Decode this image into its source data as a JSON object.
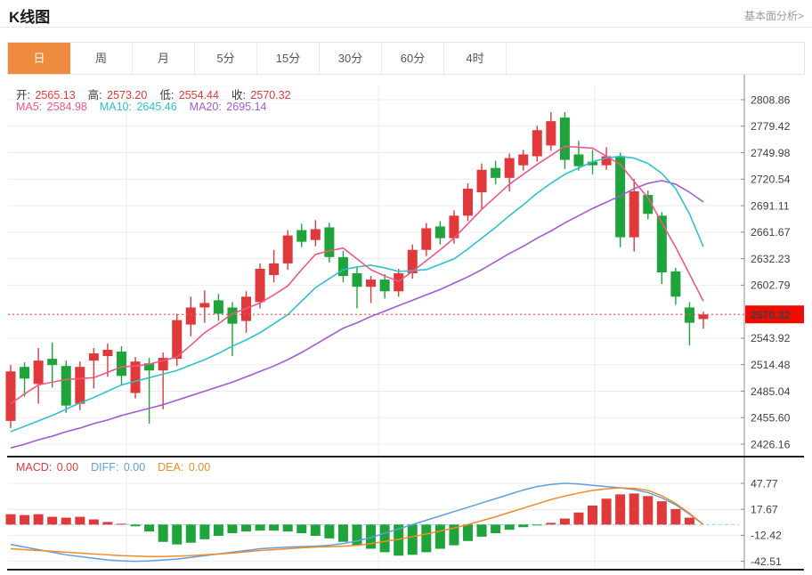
{
  "header": {
    "title": "K线图",
    "link": "基本面分析>"
  },
  "tabs": {
    "items": [
      "日",
      "周",
      "月",
      "5分",
      "15分",
      "30分",
      "60分",
      "4时"
    ],
    "active_index": 0,
    "active_bg": "#ee8b3e"
  },
  "info": {
    "ohlc": [
      {
        "label": "开:",
        "value": "2565.13"
      },
      {
        "label": "高:",
        "value": "2573.20"
      },
      {
        "label": "低:",
        "value": "2554.44"
      },
      {
        "label": "收:",
        "value": "2570.32"
      }
    ],
    "ohlc_label_color": "#3a3a3a",
    "ohlc_value_color": "#e0393b",
    "ma": [
      {
        "label": "MA5:",
        "value": "2584.98",
        "color": "#f05787"
      },
      {
        "label": "MA10:",
        "value": "2645.46",
        "color": "#2ec1ce"
      },
      {
        "label": "MA20:",
        "value": "2695.14",
        "color": "#a55ad2"
      }
    ]
  },
  "macd_info": [
    {
      "label": "MACD:",
      "value": "0.00",
      "color": "#e0393b"
    },
    {
      "label": "DIFF:",
      "value": "0.00",
      "color": "#5e9fe0"
    },
    {
      "label": "DEA:",
      "value": "0.00",
      "color": "#f08c23"
    }
  ],
  "chart_data": {
    "type": "candlestick+macd",
    "price_axis_ticks": [
      "2808.86",
      "2779.42",
      "2749.98",
      "2720.54",
      "2691.11",
      "2661.67",
      "2632.23",
      "2602.79",
      "2543.92",
      "2514.48",
      "2485.04",
      "2455.60",
      "2426.16"
    ],
    "last_price": 2570.32,
    "last_price_label": "2570.32",
    "candles": [
      [
        2452,
        2514,
        2444,
        2507
      ],
      [
        2512,
        2517,
        2479,
        2499
      ],
      [
        2493,
        2533,
        2471,
        2519
      ],
      [
        2521,
        2539,
        2489,
        2514
      ],
      [
        2513,
        2519,
        2461,
        2469
      ],
      [
        2471,
        2518,
        2464,
        2512
      ],
      [
        2519,
        2533,
        2488,
        2527
      ],
      [
        2524,
        2538,
        2501,
        2531
      ],
      [
        2529,
        2535,
        2491,
        2502
      ],
      [
        2483,
        2523,
        2477,
        2518
      ],
      [
        2516,
        2522,
        2449,
        2508
      ],
      [
        2508,
        2528,
        2465,
        2522
      ],
      [
        2521,
        2571,
        2513,
        2564
      ],
      [
        2559,
        2590,
        2546,
        2578
      ],
      [
        2578,
        2597,
        2561,
        2583
      ],
      [
        2586,
        2593,
        2563,
        2571
      ],
      [
        2578,
        2584,
        2524,
        2560
      ],
      [
        2563,
        2596,
        2550,
        2590
      ],
      [
        2584,
        2627,
        2577,
        2621
      ],
      [
        2614,
        2642,
        2606,
        2627
      ],
      [
        2627,
        2664,
        2620,
        2658
      ],
      [
        2664,
        2671,
        2645,
        2651
      ],
      [
        2653,
        2675,
        2646,
        2665
      ],
      [
        2667,
        2672,
        2628,
        2634
      ],
      [
        2634,
        2641,
        2606,
        2613
      ],
      [
        2616,
        2623,
        2577,
        2601
      ],
      [
        2601,
        2613,
        2583,
        2609
      ],
      [
        2609,
        2615,
        2588,
        2596
      ],
      [
        2596,
        2621,
        2590,
        2616
      ],
      [
        2616,
        2648,
        2610,
        2642
      ],
      [
        2642,
        2672,
        2635,
        2666
      ],
      [
        2668,
        2674,
        2648,
        2655
      ],
      [
        2655,
        2686,
        2649,
        2680
      ],
      [
        2680,
        2716,
        2674,
        2710
      ],
      [
        2706,
        2738,
        2687,
        2731
      ],
      [
        2733,
        2741,
        2715,
        2722
      ],
      [
        2722,
        2749,
        2707,
        2744
      ],
      [
        2736,
        2753,
        2730,
        2748
      ],
      [
        2746,
        2780,
        2740,
        2775
      ],
      [
        2758,
        2795,
        2752,
        2785
      ],
      [
        2789,
        2795,
        2732,
        2742
      ],
      [
        2748,
        2763,
        2730,
        2735
      ],
      [
        2740,
        2753,
        2726,
        2736
      ],
      [
        2736,
        2756,
        2731,
        2746
      ],
      [
        2745,
        2750,
        2645,
        2656
      ],
      [
        2656,
        2721,
        2640,
        2707
      ],
      [
        2703,
        2708,
        2676,
        2682
      ],
      [
        2680,
        2684,
        2604,
        2617
      ],
      [
        2618,
        2622,
        2581,
        2590
      ],
      [
        2578,
        2584,
        2536,
        2561
      ],
      [
        2565.13,
        2573.2,
        2554.44,
        2570.32
      ]
    ],
    "ma5": [
      2471,
      2482,
      2492,
      2495,
      2498,
      2499,
      2500,
      2506,
      2512,
      2513,
      2515,
      2519,
      2523,
      2536,
      2550,
      2560,
      2571,
      2577,
      2583,
      2592,
      2602,
      2620,
      2637,
      2641,
      2644,
      2632,
      2620,
      2613,
      2607,
      2618,
      2630,
      2642,
      2655,
      2671,
      2687,
      2701,
      2715,
      2726,
      2737,
      2747,
      2757,
      2756,
      2755,
      2746,
      2737,
      2718,
      2700,
      2672,
      2645,
      2615,
      2584.98
    ],
    "ma10": [
      2440,
      2446,
      2452,
      2458,
      2465,
      2472,
      2478,
      2485,
      2492,
      2496,
      2500,
      2504,
      2508,
      2514,
      2520,
      2527,
      2535,
      2542,
      2550,
      2560,
      2570,
      2585,
      2600,
      2610,
      2620,
      2623,
      2625,
      2622,
      2618,
      2619,
      2620,
      2626,
      2632,
      2643,
      2655,
      2667,
      2680,
      2692,
      2705,
      2716,
      2726,
      2733,
      2740,
      2744,
      2746,
      2744,
      2738,
      2727,
      2710,
      2682,
      2645.46
    ],
    "ma20": [
      2422,
      2426,
      2431,
      2435,
      2440,
      2444,
      2449,
      2453,
      2458,
      2462,
      2466,
      2470,
      2475,
      2480,
      2485,
      2490,
      2495,
      2501,
      2507,
      2513,
      2520,
      2528,
      2537,
      2546,
      2555,
      2561,
      2568,
      2574,
      2580,
      2586,
      2592,
      2598,
      2605,
      2612,
      2620,
      2629,
      2638,
      2646,
      2655,
      2663,
      2672,
      2680,
      2688,
      2695,
      2702,
      2710,
      2716,
      2719,
      2715,
      2706,
      2695.14
    ],
    "macd_axis_ticks": [
      "47.77",
      "17.67",
      "-12.42",
      "-42.51"
    ],
    "macd_hist": [
      12,
      11,
      12,
      9,
      8,
      9,
      6,
      3,
      1,
      -2,
      -8,
      -20,
      -23,
      -21,
      -17,
      -13,
      -10,
      -8,
      -7,
      -7,
      -8,
      -10,
      -13,
      -16,
      -20,
      -24,
      -28,
      -32,
      -36,
      -35,
      -32,
      -28,
      -24,
      -19,
      -14,
      -10,
      -6,
      -3,
      -1,
      2,
      7,
      14,
      22,
      30,
      35,
      36,
      33,
      27,
      18,
      8,
      0
    ],
    "diff_line": [
      -23,
      -26,
      -29,
      -32,
      -35,
      -37,
      -39,
      -41,
      -42,
      -42.5,
      -42,
      -41,
      -40,
      -38,
      -36,
      -34,
      -32,
      -30,
      -28,
      -27,
      -26,
      -25.5,
      -25,
      -24,
      -22,
      -19,
      -15,
      -10,
      -5,
      0,
      5,
      10,
      15,
      20,
      25,
      30,
      35,
      40,
      44,
      46.5,
      47.8,
      47,
      45.5,
      44,
      42.5,
      40.5,
      37,
      31,
      23,
      12,
      0
    ],
    "dea_line": [
      -28,
      -29,
      -30,
      -31,
      -32,
      -33,
      -34,
      -35,
      -36,
      -36.5,
      -37,
      -37,
      -36.5,
      -36,
      -35,
      -34,
      -33,
      -31.5,
      -30,
      -29,
      -28,
      -27,
      -26,
      -25.5,
      -25,
      -24,
      -22,
      -19.5,
      -17,
      -14,
      -11,
      -7.5,
      -4,
      0,
      4.5,
      9,
      14,
      19,
      24,
      29,
      33,
      36.5,
      39.5,
      41.5,
      42.5,
      42,
      39.5,
      33.5,
      24.5,
      13,
      0
    ],
    "colors": {
      "bullish_red": "#e0393b",
      "bearish_green": "#1ea43b",
      "ma5": "#f05787",
      "ma10": "#2ec1ce",
      "ma20": "#a55ad2",
      "diff": "#5e9fe0",
      "dea": "#f08c23",
      "price_line": "#f25a5a",
      "price_tag_bg": "#ee0b00",
      "zero_dash": "#8fd8e8",
      "grid": "#ececec",
      "axis": "#8a8a8a",
      "panel_split": "#1f1f1f"
    }
  }
}
